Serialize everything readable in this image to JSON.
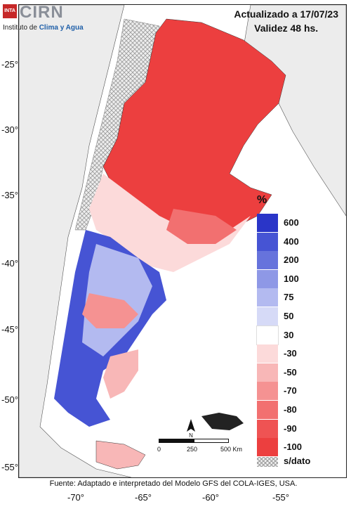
{
  "header": {
    "logo_badge": "INTA",
    "logo_name": "CIRN",
    "logo_sub_prefix": "Instituto de ",
    "logo_sub_accent": "Clima y Agua",
    "updated": "Actualizado a 17/07/23",
    "validity": "Validez 48 hs."
  },
  "axes": {
    "lat_labels": [
      "-25°",
      "-30°",
      "-35°",
      "-40°",
      "-45°",
      "-50°",
      "-55°"
    ],
    "lon_labels": [
      "-70°",
      "-65°",
      "-60°",
      "-55°"
    ]
  },
  "legend": {
    "unit": "%",
    "items": [
      {
        "label": "600",
        "color": "#2a35c8"
      },
      {
        "label": "400",
        "color": "#4654d4"
      },
      {
        "label": "200",
        "color": "#6673dc"
      },
      {
        "label": "100",
        "color": "#8e98e6"
      },
      {
        "label": "75",
        "color": "#b3baf0"
      },
      {
        "label": "50",
        "color": "#d6daf7"
      },
      {
        "label": "30",
        "color": "#ffffff"
      },
      {
        "label": "-30",
        "color": "#fcdada"
      },
      {
        "label": "-50",
        "color": "#f8b7b7"
      },
      {
        "label": "-70",
        "color": "#f59292"
      },
      {
        "label": "-80",
        "color": "#f27070"
      },
      {
        "label": "-90",
        "color": "#ef5353"
      },
      {
        "label": "-100",
        "color": "#ec3f3f"
      }
    ],
    "no_data_label": "s/dato"
  },
  "scale": {
    "labels": [
      "0",
      "250",
      "500 Km"
    ]
  },
  "north_label": "N",
  "footer": "Fuente: Adaptado e interpretado del Modelo GFS del COLA-IGES, USA."
}
